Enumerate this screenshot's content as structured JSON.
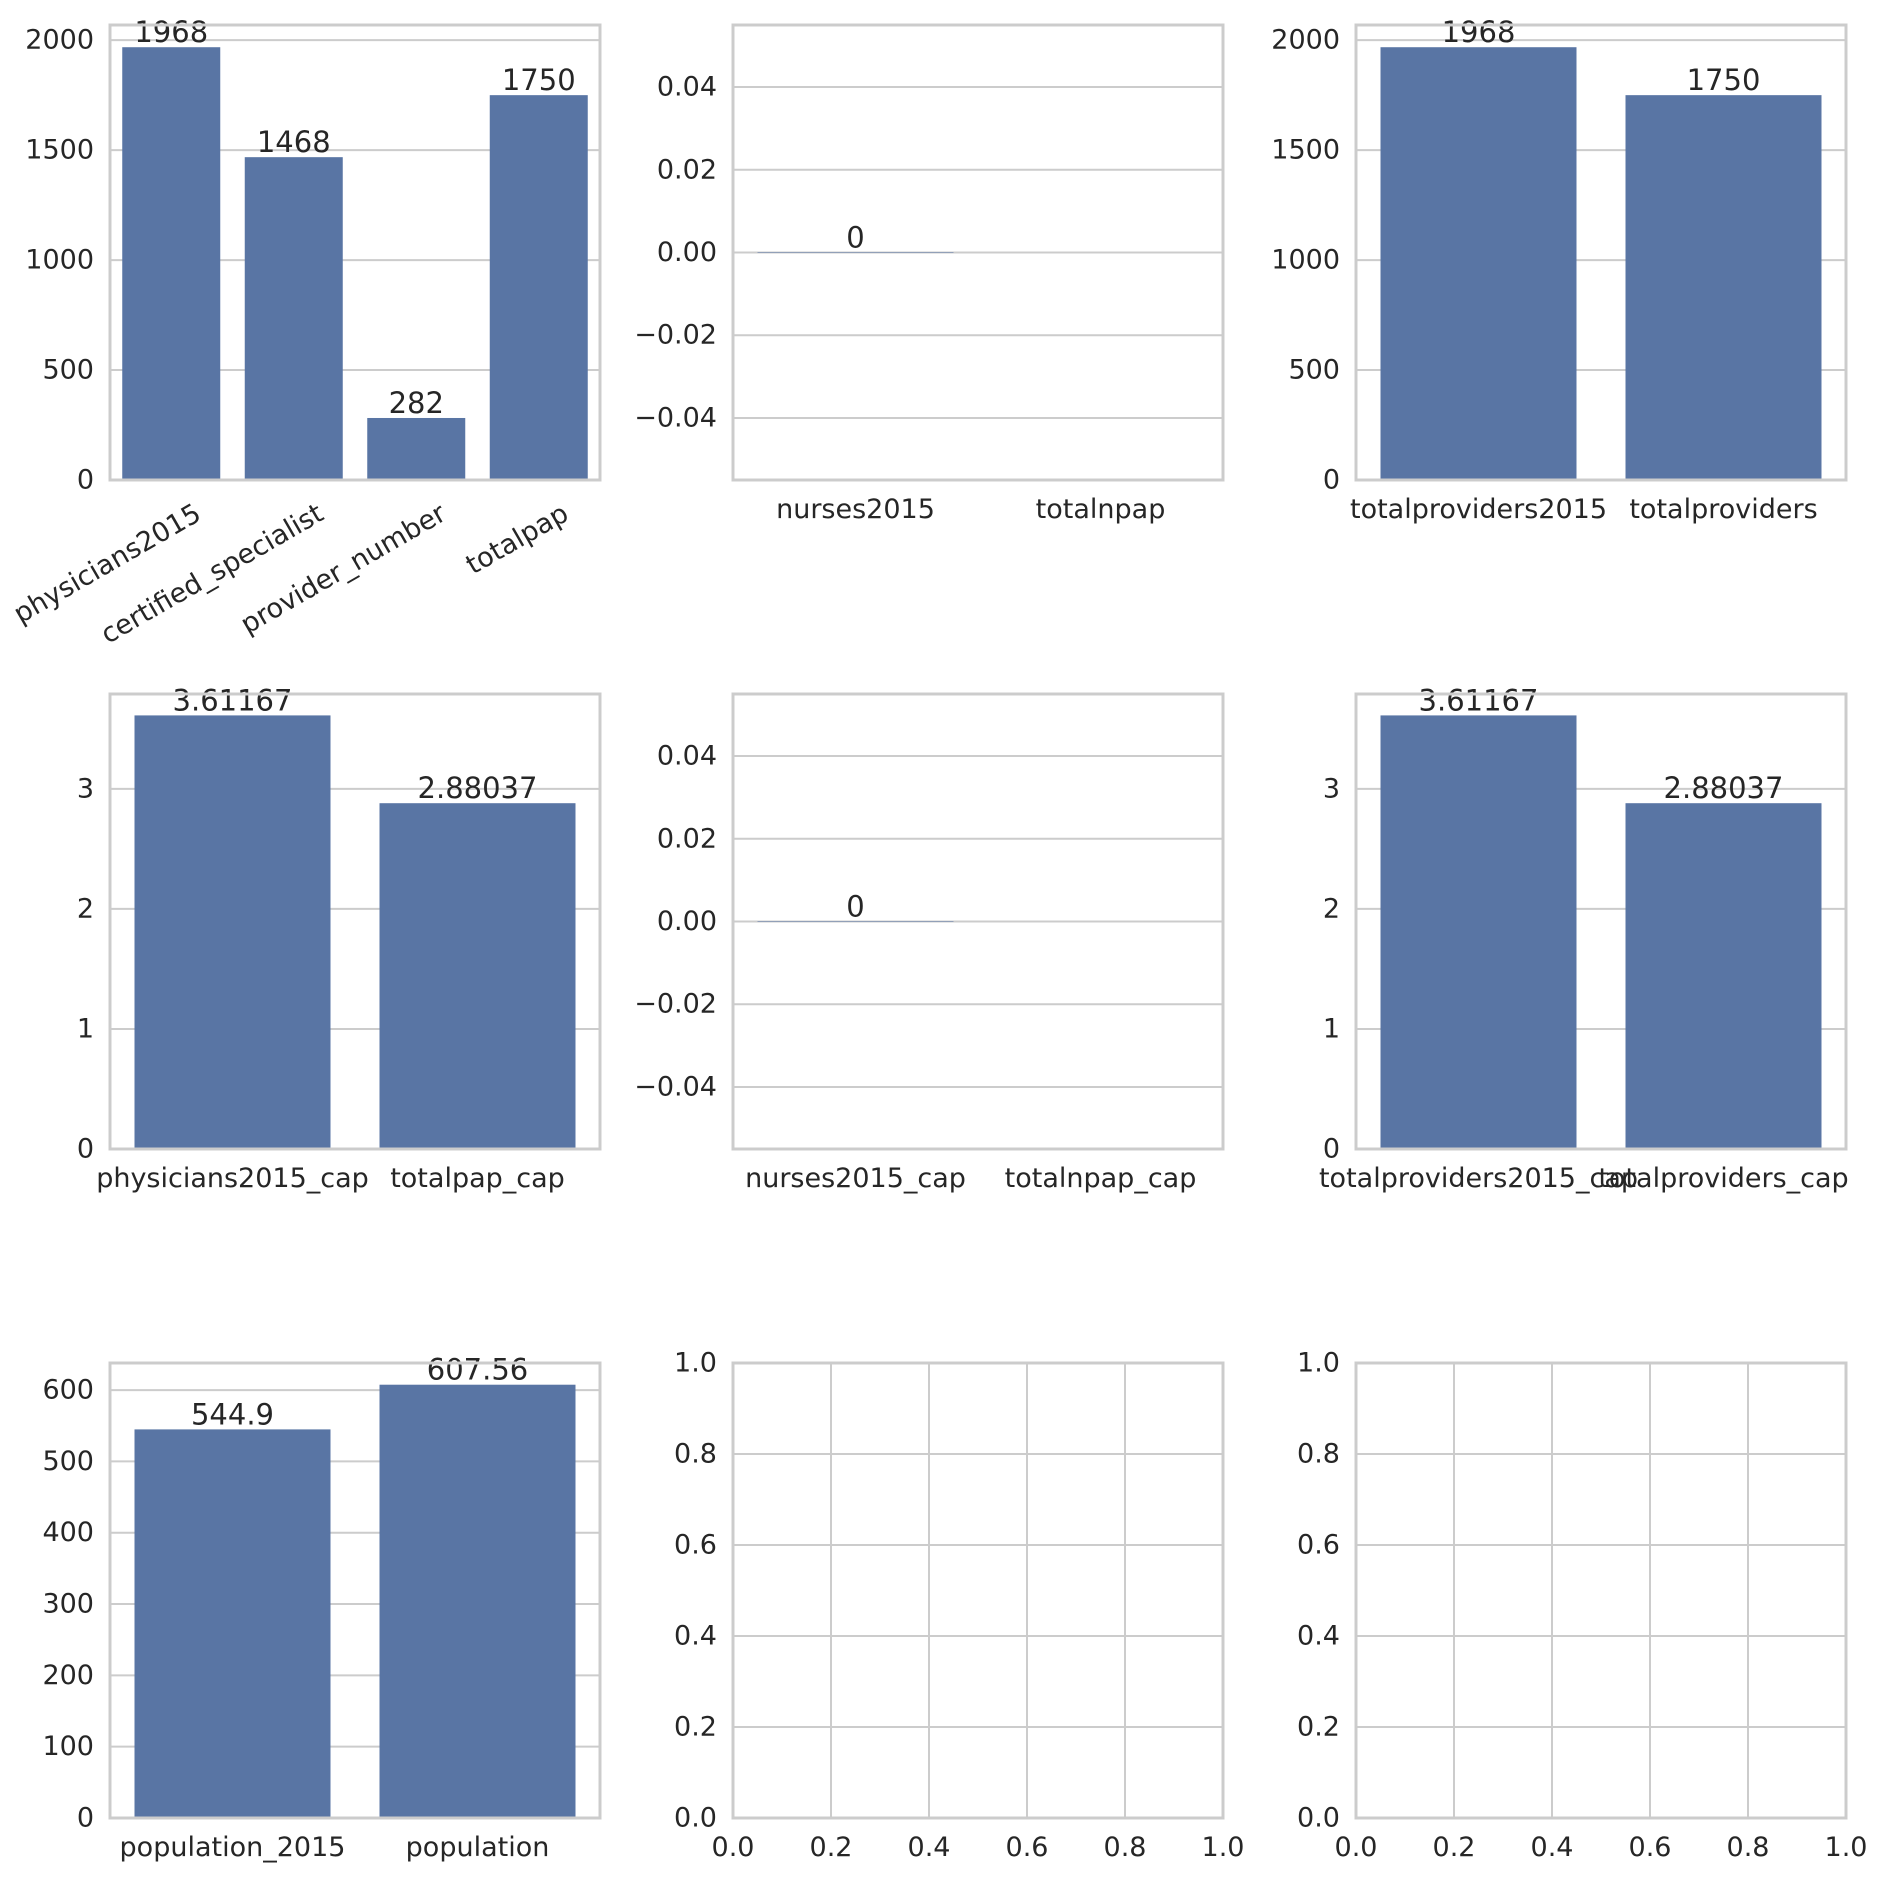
{
  "colors": {
    "bar": "#5975a4",
    "axes_edge": "#cccccc",
    "grid": "#cccccc",
    "text": "#262626",
    "background": "#ffffff"
  },
  "chart_data": [
    {
      "type": "bar",
      "categories": [
        "physicians2015",
        "certified_specialist",
        "provider_number",
        "totalpap"
      ],
      "values": [
        1968,
        1468,
        282,
        1750
      ],
      "data_labels": [
        "1968",
        "1468",
        "282",
        "1750"
      ],
      "ylim": [
        0,
        2069
      ],
      "yticks": [
        0,
        500,
        1000,
        1500,
        2000
      ],
      "ytick_labels": [
        "0",
        "500",
        "1000",
        "1500",
        "2000"
      ],
      "xtick_rotation": 30,
      "grid": "horizontal"
    },
    {
      "type": "bar",
      "categories": [
        "nurses2015",
        "totalnpap"
      ],
      "values": [
        0,
        null
      ],
      "data_labels": [
        "0"
      ],
      "ylim": [
        -0.055,
        0.055
      ],
      "yticks": [
        -0.04,
        -0.02,
        0.0,
        0.02,
        0.04
      ],
      "ytick_labels": [
        "−0.04",
        "−0.02",
        "0.00",
        "0.02",
        "0.04"
      ],
      "grid": "horizontal"
    },
    {
      "type": "bar",
      "categories": [
        "totalproviders2015",
        "totalproviders"
      ],
      "values": [
        1968,
        1750
      ],
      "data_labels": [
        "1968",
        "1750"
      ],
      "ylim": [
        0,
        2069
      ],
      "yticks": [
        0,
        500,
        1000,
        1500,
        2000
      ],
      "ytick_labels": [
        "0",
        "500",
        "1000",
        "1500",
        "2000"
      ],
      "grid": "horizontal"
    },
    {
      "type": "bar",
      "categories": [
        "physicians2015_cap",
        "totalpap_cap"
      ],
      "values": [
        3.61167,
        2.88037
      ],
      "data_labels": [
        "3.61167",
        "2.88037"
      ],
      "ylim": [
        0,
        3.79
      ],
      "yticks": [
        0,
        1,
        2,
        3
      ],
      "ytick_labels": [
        "0",
        "1",
        "2",
        "3"
      ],
      "grid": "horizontal"
    },
    {
      "type": "bar",
      "categories": [
        "nurses2015_cap",
        "totalnpap_cap"
      ],
      "values": [
        0,
        null
      ],
      "data_labels": [
        "0"
      ],
      "ylim": [
        -0.055,
        0.055
      ],
      "yticks": [
        -0.04,
        -0.02,
        0.0,
        0.02,
        0.04
      ],
      "ytick_labels": [
        "−0.04",
        "−0.02",
        "0.00",
        "0.02",
        "0.04"
      ],
      "grid": "horizontal"
    },
    {
      "type": "bar",
      "categories": [
        "totalproviders2015_cap",
        "totalproviders_cap"
      ],
      "values": [
        3.61167,
        2.88037
      ],
      "data_labels": [
        "3.61167",
        "2.88037"
      ],
      "ylim": [
        0,
        3.79
      ],
      "yticks": [
        0,
        1,
        2,
        3
      ],
      "ytick_labels": [
        "0",
        "1",
        "2",
        "3"
      ],
      "grid": "horizontal"
    },
    {
      "type": "bar",
      "categories": [
        "population_2015",
        "population"
      ],
      "values": [
        544.9,
        607.56
      ],
      "data_labels": [
        "544.9",
        "607.56"
      ],
      "ylim": [
        0,
        638
      ],
      "yticks": [
        0,
        100,
        200,
        300,
        400,
        500,
        600
      ],
      "ytick_labels": [
        "0",
        "100",
        "200",
        "300",
        "400",
        "500",
        "600"
      ],
      "grid": "horizontal"
    },
    {
      "type": "empty",
      "xlim": [
        0,
        1
      ],
      "ylim": [
        0,
        1
      ],
      "xticks": [
        0,
        0.2,
        0.4,
        0.6,
        0.8,
        1.0
      ],
      "xtick_labels": [
        "0.0",
        "0.2",
        "0.4",
        "0.6",
        "0.8",
        "1.0"
      ],
      "yticks": [
        0,
        0.2,
        0.4,
        0.6,
        0.8,
        1.0
      ],
      "ytick_labels": [
        "0.0",
        "0.2",
        "0.4",
        "0.6",
        "0.8",
        "1.0"
      ],
      "grid": "both"
    },
    {
      "type": "empty",
      "xlim": [
        0,
        1
      ],
      "ylim": [
        0,
        1
      ],
      "xticks": [
        0,
        0.2,
        0.4,
        0.6,
        0.8,
        1.0
      ],
      "xtick_labels": [
        "0.0",
        "0.2",
        "0.4",
        "0.6",
        "0.8",
        "1.0"
      ],
      "yticks": [
        0,
        0.2,
        0.4,
        0.6,
        0.8,
        1.0
      ],
      "ytick_labels": [
        "0.0",
        "0.2",
        "0.4",
        "0.6",
        "0.8",
        "1.0"
      ],
      "grid": "both"
    }
  ]
}
